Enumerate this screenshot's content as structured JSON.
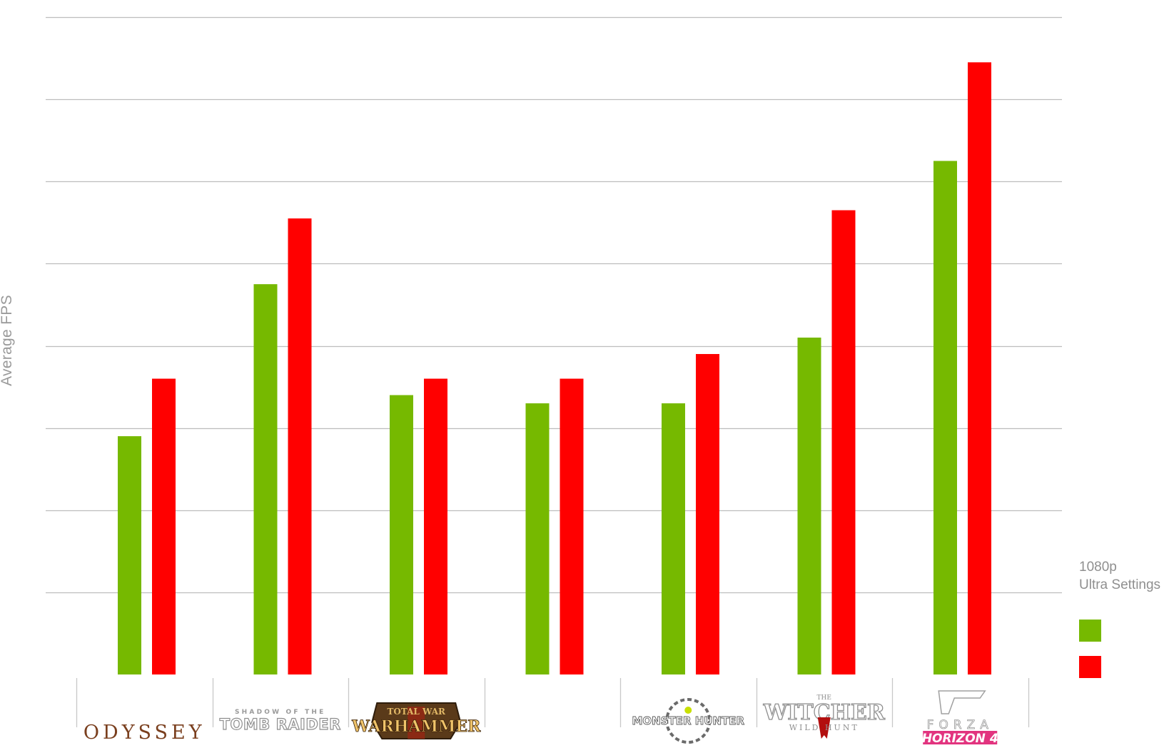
{
  "chart_data": {
    "type": "bar",
    "title": "",
    "ylabel": "Average FPS",
    "ylim": [
      0,
      80
    ],
    "grid": true,
    "gridline_count": 8,
    "legend": {
      "position": "right",
      "title_line1": "1080p",
      "title_line2": "Ultra Settings",
      "swatch_colors": [
        "#76b900",
        "#ff0000"
      ]
    },
    "categories": [
      {
        "logo": "odyssey-logo",
        "text": "ODYSSEY"
      },
      {
        "logo": "tomb-raider-logo",
        "text_top": "SHADOW OF THE",
        "text": "TOMB RAIDER"
      },
      {
        "logo": "warhammer-logo",
        "text_top": "TOTAL WAR",
        "text": "WARHAMMER"
      },
      {
        "logo": "blank-logo",
        "text": ""
      },
      {
        "logo": "monster-hunter-logo",
        "text": "MONSTER HUNTER"
      },
      {
        "logo": "witcher-logo",
        "text_top": "THE",
        "text": "WITCHER",
        "text_bottom": "WILD HUNT"
      },
      {
        "logo": "forza-logo",
        "text_top": "FORZA",
        "text": "HORIZON 4"
      }
    ],
    "series": [
      {
        "color": "#76b900",
        "values": [
          29,
          47.5,
          34,
          33,
          33,
          41,
          62.5
        ]
      },
      {
        "color": "#ff0000",
        "values": [
          36,
          55.5,
          36,
          36,
          39,
          56.5,
          74.5
        ]
      }
    ]
  }
}
